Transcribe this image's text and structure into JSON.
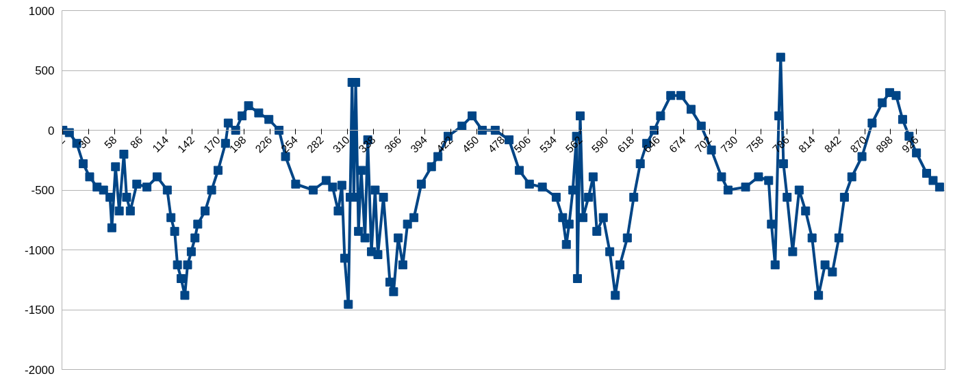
{
  "chart_data": {
    "type": "line",
    "marker": "square",
    "line_style": "solid",
    "grid": "y",
    "xlim": [
      1,
      957
    ],
    "xticks": [
      2,
      30,
      58,
      86,
      114,
      142,
      170,
      198,
      226,
      254,
      282,
      310,
      338,
      366,
      394,
      422,
      450,
      478,
      506,
      534,
      562,
      590,
      618,
      646,
      674,
      702,
      730,
      758,
      786,
      814,
      842,
      870,
      898,
      926
    ],
    "ylim": [
      -2000,
      1000
    ],
    "yticks": [
      -2000,
      -1500,
      -1000,
      -500,
      0,
      500,
      1000
    ],
    "series": [
      {
        "color": "#004586",
        "x": [
          2,
          9,
          17,
          24,
          31,
          39,
          46,
          53,
          55,
          59,
          63,
          68,
          71,
          75,
          82,
          93,
          104,
          115,
          119,
          123,
          126,
          130,
          134,
          137,
          141,
          145,
          148,
          156,
          163,
          170,
          178,
          181,
          189,
          196,
          203,
          214,
          225,
          236,
          243,
          254,
          273,
          287,
          294,
          300,
          304,
          307,
          311,
          313,
          315,
          317,
          319,
          322,
          325,
          329,
          332,
          336,
          340,
          343,
          349,
          356,
          360,
          365,
          370,
          375,
          382,
          390,
          401,
          408,
          419,
          434,
          445,
          456,
          470,
          485,
          496,
          507,
          521,
          536,
          543,
          547,
          550,
          554,
          558,
          559,
          562,
          565,
          571,
          576,
          580,
          587,
          594,
          600,
          605,
          613,
          620,
          627,
          634,
          642,
          649,
          660,
          671,
          682,
          693,
          704,
          715,
          722,
          741,
          755,
          766,
          769,
          773,
          777,
          779,
          782,
          786,
          792,
          799,
          806,
          813,
          820,
          827,
          835,
          842,
          848,
          856,
          867,
          878,
          889,
          897,
          904,
          911,
          918,
          926,
          937,
          944,
          951
        ],
        "values": [
          0,
          -20,
          -110,
          -280,
          -390,
          -475,
          -500,
          -560,
          -815,
          -305,
          -675,
          -200,
          -560,
          -675,
          -450,
          -475,
          -390,
          -500,
          -730,
          -845,
          -1125,
          -1240,
          -1380,
          -1125,
          -1015,
          -900,
          -785,
          -675,
          -500,
          -335,
          -110,
          60,
          0,
          120,
          205,
          145,
          90,
          0,
          -220,
          -450,
          -500,
          -420,
          -475,
          -675,
          -460,
          -1070,
          -1455,
          -560,
          400,
          -560,
          400,
          -845,
          -335,
          -900,
          -80,
          -1015,
          -500,
          -1040,
          -560,
          -1270,
          -1350,
          -900,
          -1125,
          -785,
          -730,
          -450,
          -305,
          -220,
          -50,
          35,
          120,
          0,
          0,
          -80,
          -335,
          -450,
          -475,
          -560,
          -730,
          -955,
          -785,
          -500,
          -50,
          -1240,
          120,
          -730,
          -560,
          -390,
          -845,
          -730,
          -1015,
          -1380,
          -1125,
          -900,
          -560,
          -280,
          -110,
          0,
          120,
          290,
          290,
          175,
          35,
          -165,
          -390,
          -500,
          -475,
          -390,
          -420,
          -785,
          -1125,
          120,
          610,
          -280,
          -560,
          -1015,
          -500,
          -675,
          -900,
          -1380,
          -1125,
          -1185,
          -900,
          -560,
          -390,
          -220,
          60,
          230,
          315,
          290,
          90,
          -50,
          -190,
          -360,
          -420,
          -475
        ]
      }
    ]
  }
}
